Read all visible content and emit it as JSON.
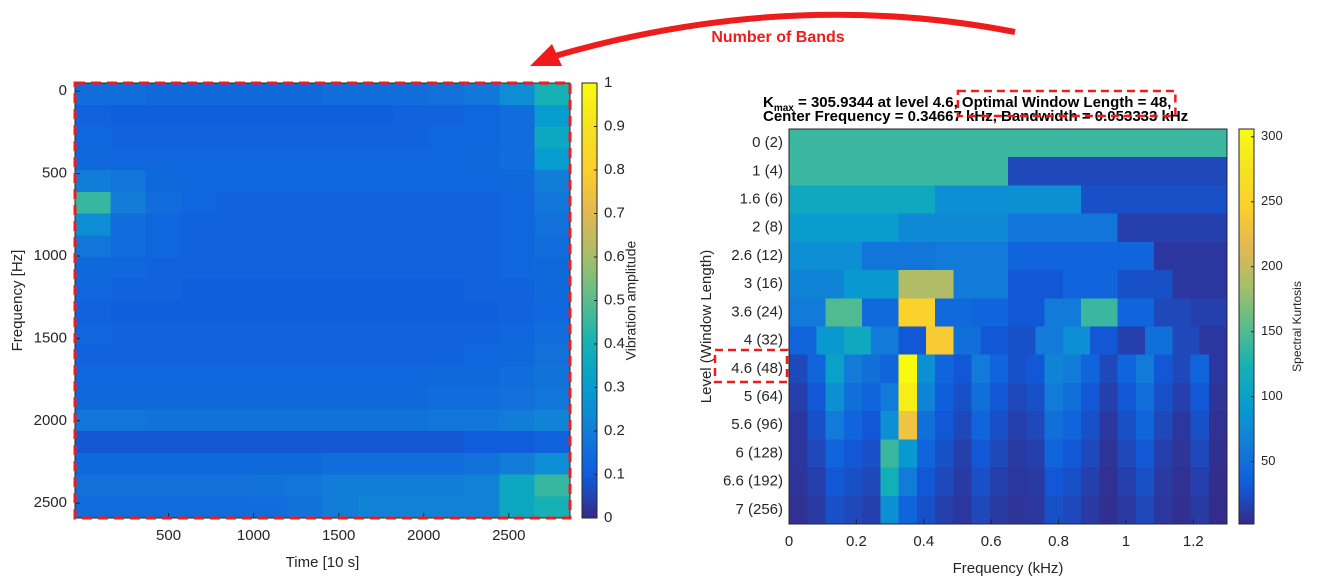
{
  "chart_data": [
    {
      "type": "heatmap",
      "colormap": "parula",
      "x_label": "Time [10 s]",
      "y_label": "Frequency [Hz]",
      "colorbar_label": "Vibration amplitude",
      "xlim": [
        -50,
        2860
      ],
      "xticks": [
        500,
        1000,
        1500,
        2000,
        2500
      ],
      "ylim": [
        -50,
        2590
      ],
      "y_direction": "reverse",
      "yticks": [
        0,
        500,
        1000,
        1500,
        2000,
        2500
      ],
      "clim": [
        0,
        1
      ],
      "cticks": [
        0,
        0.1,
        0.2,
        0.3,
        0.4,
        0.5,
        0.6,
        0.7,
        0.8,
        0.9,
        1
      ],
      "z": [
        [
          0.15,
          0.15,
          0.14,
          0.14,
          0.14,
          0.14,
          0.14,
          0.15,
          0.15,
          0.15,
          0.16,
          0.18,
          0.25,
          0.4
        ],
        [
          0.12,
          0.11,
          0.11,
          0.11,
          0.11,
          0.11,
          0.11,
          0.11,
          0.11,
          0.12,
          0.12,
          0.13,
          0.15,
          0.3
        ],
        [
          0.13,
          0.12,
          0.12,
          0.12,
          0.12,
          0.12,
          0.12,
          0.12,
          0.12,
          0.12,
          0.13,
          0.13,
          0.15,
          0.35
        ],
        [
          0.14,
          0.13,
          0.13,
          0.13,
          0.13,
          0.13,
          0.13,
          0.13,
          0.13,
          0.13,
          0.13,
          0.14,
          0.15,
          0.3
        ],
        [
          0.2,
          0.18,
          0.14,
          0.13,
          0.13,
          0.13,
          0.13,
          0.13,
          0.13,
          0.13,
          0.13,
          0.13,
          0.14,
          0.2
        ],
        [
          0.45,
          0.2,
          0.15,
          0.13,
          0.12,
          0.12,
          0.12,
          0.12,
          0.12,
          0.12,
          0.12,
          0.12,
          0.13,
          0.18
        ],
        [
          0.25,
          0.15,
          0.13,
          0.12,
          0.12,
          0.12,
          0.12,
          0.12,
          0.12,
          0.12,
          0.12,
          0.12,
          0.13,
          0.16
        ],
        [
          0.18,
          0.15,
          0.13,
          0.12,
          0.12,
          0.12,
          0.12,
          0.12,
          0.12,
          0.12,
          0.12,
          0.12,
          0.13,
          0.15
        ],
        [
          0.14,
          0.13,
          0.12,
          0.12,
          0.12,
          0.12,
          0.12,
          0.12,
          0.12,
          0.12,
          0.12,
          0.12,
          0.13,
          0.14
        ],
        [
          0.13,
          0.12,
          0.12,
          0.11,
          0.11,
          0.11,
          0.11,
          0.11,
          0.11,
          0.11,
          0.11,
          0.12,
          0.12,
          0.14
        ],
        [
          0.12,
          0.11,
          0.11,
          0.11,
          0.11,
          0.11,
          0.11,
          0.11,
          0.11,
          0.11,
          0.11,
          0.11,
          0.12,
          0.13
        ],
        [
          0.13,
          0.12,
          0.12,
          0.12,
          0.12,
          0.12,
          0.12,
          0.12,
          0.12,
          0.12,
          0.12,
          0.12,
          0.13,
          0.15
        ],
        [
          0.12,
          0.12,
          0.12,
          0.12,
          0.12,
          0.12,
          0.12,
          0.12,
          0.12,
          0.12,
          0.12,
          0.13,
          0.14,
          0.16
        ],
        [
          0.13,
          0.13,
          0.13,
          0.13,
          0.13,
          0.13,
          0.13,
          0.13,
          0.13,
          0.13,
          0.14,
          0.14,
          0.15,
          0.17
        ],
        [
          0.14,
          0.14,
          0.14,
          0.14,
          0.14,
          0.14,
          0.14,
          0.14,
          0.14,
          0.14,
          0.15,
          0.15,
          0.16,
          0.18
        ],
        [
          0.18,
          0.18,
          0.17,
          0.17,
          0.17,
          0.17,
          0.17,
          0.17,
          0.17,
          0.17,
          0.18,
          0.18,
          0.2,
          0.22
        ],
        [
          0.09,
          0.09,
          0.09,
          0.09,
          0.09,
          0.09,
          0.09,
          0.09,
          0.09,
          0.09,
          0.09,
          0.1,
          0.1,
          0.12
        ],
        [
          0.14,
          0.14,
          0.14,
          0.14,
          0.14,
          0.14,
          0.14,
          0.15,
          0.15,
          0.15,
          0.15,
          0.16,
          0.2,
          0.25
        ],
        [
          0.16,
          0.16,
          0.16,
          0.16,
          0.16,
          0.17,
          0.18,
          0.2,
          0.2,
          0.2,
          0.2,
          0.22,
          0.35,
          0.45
        ],
        [
          0.15,
          0.15,
          0.15,
          0.15,
          0.15,
          0.15,
          0.17,
          0.2,
          0.22,
          0.22,
          0.22,
          0.22,
          0.35,
          0.4
        ]
      ]
    },
    {
      "type": "heatmap",
      "colormap": "parula",
      "title_k": "K",
      "title_sub": "max",
      "title_rest": " = 305.9344 at level 4.6, ",
      "title_highlight": "Optimal Window Length = 48,",
      "title_line2": "Center Frequency = 0.34667 kHz, Bandwidth = 0.053333 kHz",
      "x_label": "Frequency (kHz)",
      "y_label": "Level (Window Length)",
      "colorbar_label": "Spectral Kurtosis",
      "xlim": [
        0,
        1.3
      ],
      "xticks": [
        0,
        0.2,
        0.4,
        0.6,
        0.8,
        1,
        1.2
      ],
      "categories": [
        "0  (2)",
        "1  (4)",
        "1.6  (6)",
        "2  (8)",
        "2.6  (12)",
        "3  (16)",
        "3.6  (24)",
        "4  (32)",
        "4.6  (48)",
        "5  (64)",
        "5.6  (96)",
        "6  (128)",
        "6.6  (192)",
        "7  (256)"
      ],
      "clim": [
        2,
        306
      ],
      "cticks": [
        50,
        100,
        150,
        200,
        250,
        300
      ],
      "z": [
        [
          140
        ],
        [
          140,
          20
        ],
        [
          110,
          80,
          25
        ],
        [
          95,
          75,
          55,
          15
        ],
        [
          80,
          55,
          60,
          40,
          40,
          10
        ],
        [
          70,
          90,
          190,
          60,
          30,
          40,
          25,
          10
        ],
        [
          60,
          150,
          45,
          250,
          45,
          40,
          30,
          60,
          140,
          40,
          20,
          15
        ],
        [
          40,
          90,
          110,
          60,
          30,
          240,
          50,
          30,
          25,
          60,
          80,
          30,
          15,
          50,
          20,
          10
        ],
        [
          20,
          40,
          100,
          60,
          50,
          40,
          306,
          80,
          40,
          30,
          60,
          40,
          25,
          30,
          70,
          60,
          40,
          20,
          40,
          60,
          30,
          20,
          40,
          10
        ],
        [
          15,
          30,
          80,
          50,
          40,
          60,
          290,
          70,
          35,
          25,
          50,
          30,
          20,
          25,
          60,
          50,
          30,
          15,
          30,
          50,
          25,
          15,
          30,
          8
        ],
        [
          10,
          25,
          60,
          40,
          30,
          80,
          230,
          50,
          30,
          20,
          40,
          25,
          15,
          20,
          50,
          40,
          25,
          10,
          25,
          40,
          20,
          10,
          25,
          6
        ],
        [
          10,
          20,
          40,
          30,
          25,
          140,
          90,
          40,
          25,
          15,
          30,
          20,
          12,
          15,
          40,
          30,
          20,
          8,
          20,
          30,
          15,
          8,
          20,
          5
        ],
        [
          8,
          15,
          30,
          25,
          20,
          120,
          60,
          30,
          20,
          12,
          25,
          15,
          10,
          12,
          30,
          25,
          15,
          6,
          15,
          25,
          12,
          6,
          15,
          4
        ],
        [
          6,
          12,
          25,
          20,
          15,
          80,
          40,
          25,
          15,
          10,
          20,
          12,
          8,
          10,
          25,
          20,
          12,
          5,
          12,
          20,
          10,
          5,
          12,
          3
        ]
      ]
    }
  ],
  "annotation": "Number of Bands"
}
